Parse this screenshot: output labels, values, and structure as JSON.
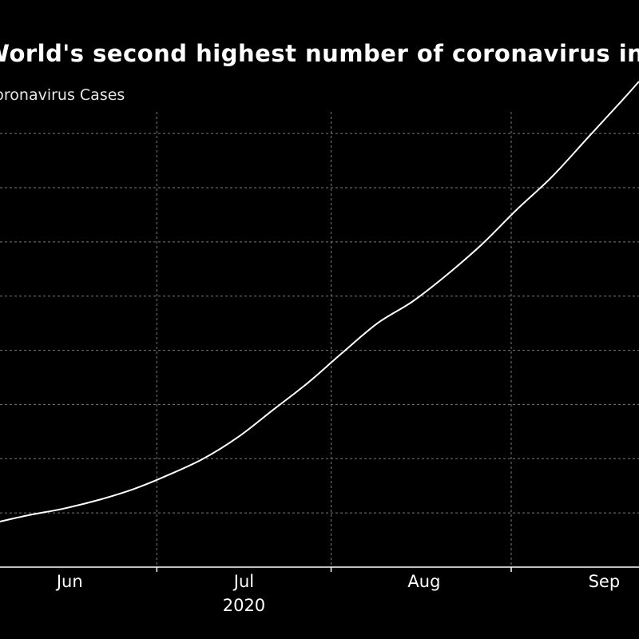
{
  "title": "World's second highest number of coronavirus infections",
  "subtitle": "Coronavirus Cases",
  "chart_data": {
    "type": "line",
    "title": "World's second highest number of coronavirus infections",
    "subtitle": "Coronavirus Cases",
    "x_tick_labels": [
      "Jun",
      "Jul",
      "Aug",
      "Sep"
    ],
    "x_tick_dates": [
      "2020-06-01",
      "2020-07-01",
      "2020-08-01",
      "2020-09-01"
    ],
    "x_minor_tick_dates": [
      "2020-05-01",
      "2020-06-16",
      "2020-07-16",
      "2020-08-16"
    ],
    "x_year_label": "2020",
    "xlim": [
      "2020-05-20",
      "2020-09-07"
    ],
    "ylim": [
      0,
      4200000
    ],
    "y_gridlines": [
      500000,
      1000000,
      1500000,
      2000000,
      2500000,
      3000000,
      3500000,
      4000000
    ],
    "grid": true,
    "line_color": "#ffffff",
    "series": [
      {
        "x": [
          "2020-05-20",
          "2020-05-25",
          "2020-05-31",
          "2020-06-06",
          "2020-06-12",
          "2020-06-18",
          "2020-06-24",
          "2020-06-30",
          "2020-07-06",
          "2020-07-12",
          "2020-07-18",
          "2020-07-24",
          "2020-07-30",
          "2020-08-05",
          "2020-08-11",
          "2020-08-17",
          "2020-08-23",
          "2020-08-29",
          "2020-09-04",
          "2020-09-07"
        ],
        "y": [
          420000,
          480000,
          540000,
          620000,
          720000,
          850000,
          1000000,
          1200000,
          1450000,
          1700000,
          1980000,
          2250000,
          2450000,
          2700000,
          2980000,
          3300000,
          3600000,
          3950000,
          4300000,
          4480000
        ]
      }
    ]
  }
}
